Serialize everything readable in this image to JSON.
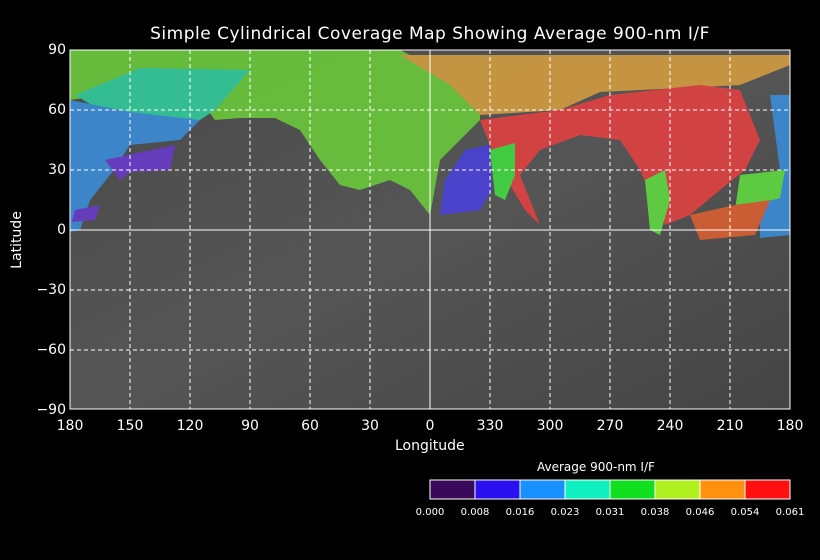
{
  "title": "Simple Cylindrical Coverage Map Showing Average 900-nm I/F",
  "x_axis": {
    "label": "Longitude",
    "ticks": [
      "180",
      "150",
      "120",
      "90",
      "60",
      "30",
      "0",
      "330",
      "300",
      "270",
      "240",
      "210",
      "180"
    ]
  },
  "y_axis": {
    "label": "Latitude",
    "ticks": [
      "90",
      "60",
      "30",
      "0",
      "−30",
      "−60",
      "−90"
    ]
  },
  "colorbar": {
    "title": "Average 900-nm I/F",
    "ticks": [
      "0.000",
      "0.008",
      "0.016",
      "0.023",
      "0.031",
      "0.038",
      "0.046",
      "0.054",
      "0.061"
    ],
    "colors": [
      "#3a0a5a",
      "#2a10f0",
      "#1890ff",
      "#10f0c0",
      "#10e020",
      "#b0f020",
      "#ff9010",
      "#ff1010"
    ]
  }
}
